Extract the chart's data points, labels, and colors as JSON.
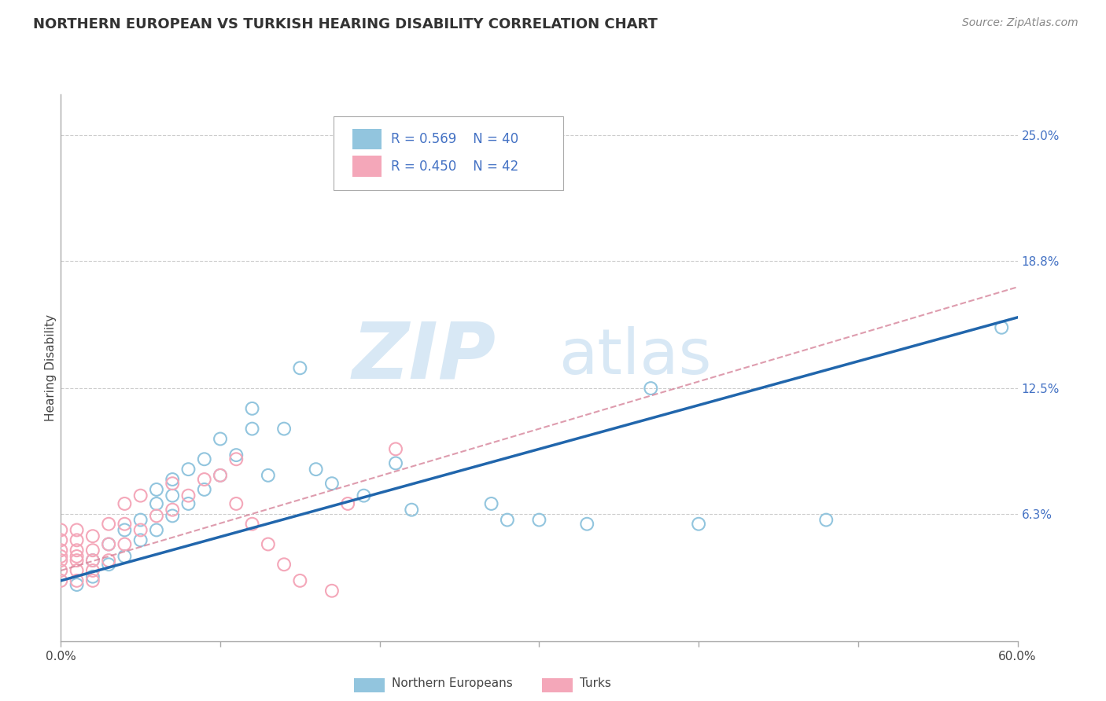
{
  "title": "NORTHERN EUROPEAN VS TURKISH HEARING DISABILITY CORRELATION CHART",
  "source": "Source: ZipAtlas.com",
  "ylabel": "Hearing Disability",
  "yticks": [
    "6.3%",
    "12.5%",
    "18.8%",
    "25.0%"
  ],
  "ytick_vals": [
    0.063,
    0.125,
    0.188,
    0.25
  ],
  "xlim": [
    0.0,
    0.6
  ],
  "ylim": [
    0.0,
    0.27
  ],
  "legend_r_blue": "R = 0.569",
  "legend_n_blue": "N = 40",
  "legend_r_pink": "R = 0.450",
  "legend_n_pink": "N = 42",
  "legend_label_blue": "Northern Europeans",
  "legend_label_pink": "Turks",
  "blue_color": "#92c5de",
  "pink_color": "#f4a7b9",
  "blue_line_color": "#2166ac",
  "pink_line_color": "#d6849a",
  "watermark_zip": "ZIP",
  "watermark_atlas": "atlas",
  "blue_scatter_x": [
    0.01,
    0.02,
    0.02,
    0.03,
    0.03,
    0.04,
    0.04,
    0.05,
    0.05,
    0.06,
    0.06,
    0.06,
    0.07,
    0.07,
    0.07,
    0.08,
    0.08,
    0.09,
    0.09,
    0.1,
    0.1,
    0.11,
    0.12,
    0.12,
    0.13,
    0.14,
    0.15,
    0.16,
    0.17,
    0.19,
    0.21,
    0.22,
    0.27,
    0.28,
    0.3,
    0.33,
    0.37,
    0.4,
    0.48,
    0.59
  ],
  "blue_scatter_y": [
    0.028,
    0.032,
    0.04,
    0.038,
    0.048,
    0.042,
    0.055,
    0.05,
    0.06,
    0.055,
    0.068,
    0.075,
    0.062,
    0.072,
    0.08,
    0.068,
    0.085,
    0.075,
    0.09,
    0.082,
    0.1,
    0.092,
    0.105,
    0.115,
    0.082,
    0.105,
    0.135,
    0.085,
    0.078,
    0.072,
    0.088,
    0.065,
    0.068,
    0.06,
    0.06,
    0.058,
    0.125,
    0.058,
    0.06,
    0.155
  ],
  "pink_scatter_x": [
    0.0,
    0.0,
    0.0,
    0.0,
    0.0,
    0.0,
    0.0,
    0.01,
    0.01,
    0.01,
    0.01,
    0.01,
    0.01,
    0.01,
    0.02,
    0.02,
    0.02,
    0.02,
    0.02,
    0.03,
    0.03,
    0.03,
    0.04,
    0.04,
    0.04,
    0.05,
    0.05,
    0.06,
    0.07,
    0.07,
    0.08,
    0.09,
    0.1,
    0.11,
    0.11,
    0.12,
    0.13,
    0.14,
    0.15,
    0.17,
    0.18,
    0.21
  ],
  "pink_scatter_y": [
    0.03,
    0.035,
    0.04,
    0.042,
    0.045,
    0.05,
    0.055,
    0.03,
    0.035,
    0.04,
    0.042,
    0.045,
    0.05,
    0.055,
    0.03,
    0.035,
    0.04,
    0.045,
    0.052,
    0.04,
    0.048,
    0.058,
    0.048,
    0.058,
    0.068,
    0.055,
    0.072,
    0.062,
    0.065,
    0.078,
    0.072,
    0.08,
    0.082,
    0.068,
    0.09,
    0.058,
    0.048,
    0.038,
    0.03,
    0.025,
    0.068,
    0.095
  ],
  "blue_line_x": [
    0.0,
    0.6
  ],
  "blue_line_y": [
    0.03,
    0.16
  ],
  "pink_line_x": [
    0.0,
    0.6
  ],
  "pink_line_y": [
    0.035,
    0.175
  ],
  "xtick_positions": [
    0.0,
    0.1,
    0.2,
    0.3,
    0.4,
    0.5,
    0.6
  ]
}
